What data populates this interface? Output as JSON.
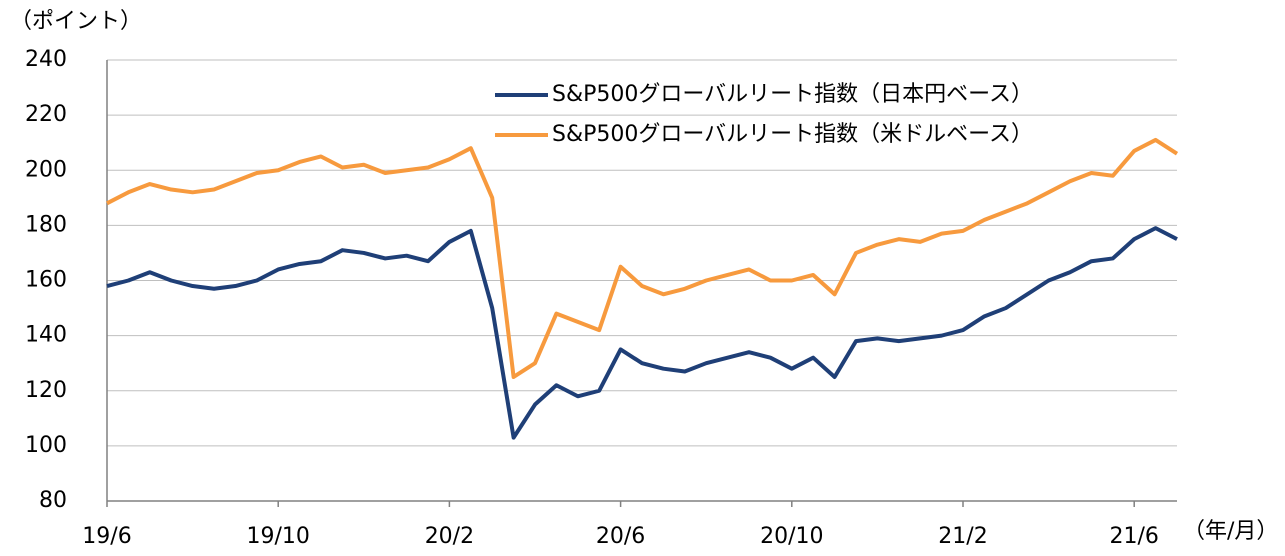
{
  "chart_data": {
    "type": "line",
    "y_unit_label": "（ポイント）",
    "x_unit_label": "（年/月）",
    "categories": [
      "19/6",
      null,
      null,
      null,
      null,
      null,
      null,
      null,
      "19/10",
      null,
      null,
      null,
      null,
      null,
      null,
      null,
      "20/2",
      null,
      null,
      null,
      null,
      null,
      null,
      null,
      "20/6",
      null,
      null,
      null,
      null,
      null,
      null,
      null,
      "20/10",
      null,
      null,
      null,
      null,
      null,
      null,
      null,
      "21/2",
      null,
      null,
      null,
      null,
      null,
      null,
      null,
      "21/6",
      null,
      null
    ],
    "series": [
      {
        "name": "S&P500グローバルリート指数（日本円ベース）",
        "color": "#1f3f77",
        "values": [
          158,
          160,
          163,
          160,
          158,
          157,
          158,
          160,
          164,
          166,
          167,
          171,
          170,
          168,
          169,
          167,
          174,
          178,
          150,
          103,
          115,
          122,
          118,
          120,
          135,
          130,
          128,
          127,
          130,
          132,
          134,
          132,
          128,
          132,
          125,
          138,
          139,
          138,
          139,
          140,
          142,
          147,
          150,
          155,
          160,
          163,
          167,
          168,
          175,
          179,
          175
        ]
      },
      {
        "name": "S&P500グローバルリート指数（米ドルベース）",
        "color": "#f79a3e",
        "values": [
          188,
          192,
          195,
          193,
          192,
          193,
          196,
          199,
          200,
          203,
          205,
          201,
          202,
          199,
          200,
          201,
          204,
          208,
          190,
          125,
          130,
          148,
          145,
          142,
          165,
          158,
          155,
          157,
          160,
          162,
          164,
          160,
          160,
          162,
          155,
          170,
          173,
          175,
          174,
          177,
          178,
          182,
          185,
          188,
          192,
          196,
          199,
          198,
          207,
          211,
          206
        ]
      }
    ],
    "ylim": [
      80,
      240
    ],
    "yticks": [
      80,
      100,
      120,
      140,
      160,
      180,
      200,
      220,
      240
    ],
    "grid": true
  }
}
